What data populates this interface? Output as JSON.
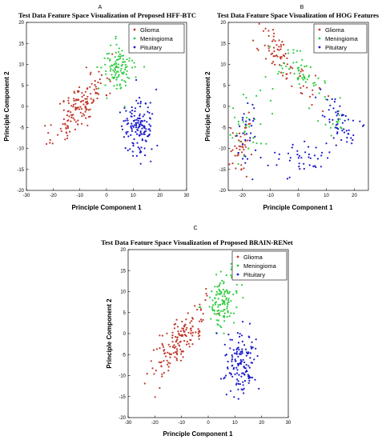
{
  "chart_data": [
    {
      "type": "scatter",
      "panel": "A",
      "title": "Test Data Feature Space Visualization of Proposed HFF-BTC",
      "xlabel": "Principle Component 1",
      "ylabel": "Principle Component 2",
      "xlim": [
        -30,
        30
      ],
      "ylim": [
        -20,
        20
      ],
      "xticks": [
        -30,
        -20,
        -10,
        0,
        10,
        20,
        30
      ],
      "yticks": [
        -20,
        -15,
        -10,
        -5,
        0,
        5,
        10,
        15,
        20
      ],
      "legend_position": "top-right",
      "series": [
        {
          "name": "Glioma",
          "color": "#c0392b",
          "marker": "dot",
          "clusters": [
            {
              "n": 150,
              "cx": -10,
              "cy": 0,
              "spread": [
                4.8,
                3.2
              ],
              "tilt": 0.55,
              "seed": 11
            }
          ]
        },
        {
          "name": "Meningioma",
          "color": "#2ecc40",
          "marker": "dot",
          "clusters": [
            {
              "n": 110,
              "cx": 5,
              "cy": 9,
              "spread": [
                3.2,
                3.0
              ],
              "tilt": 0.1,
              "seed": 12
            }
          ]
        },
        {
          "name": "Pituitary",
          "color": "#1a1acc",
          "marker": "dot",
          "clusters": [
            {
              "n": 140,
              "cx": 12,
              "cy": -5,
              "spread": [
                3.0,
                3.4
              ],
              "tilt": 0,
              "seed": 13
            }
          ]
        }
      ]
    },
    {
      "type": "scatter",
      "panel": "B",
      "title": "Test Data Feature Space Visualization of HOG Features",
      "xlabel": "Principle Component 1",
      "ylabel": "Principle Component 2",
      "xlim": [
        -25,
        25
      ],
      "ylim": [
        -20,
        20
      ],
      "xticks": [
        -20,
        -10,
        0,
        10,
        20
      ],
      "yticks": [
        -20,
        -15,
        -10,
        -5,
        0,
        5,
        10,
        15,
        20
      ],
      "legend_position": "top-right",
      "series": [
        {
          "name": "Glioma",
          "color": "#c0392b",
          "marker": "dot",
          "clusters": [
            {
              "n": 60,
              "cx": -7,
              "cy": 12,
              "spread": [
                3.0,
                2.6
              ],
              "tilt": -0.5,
              "seed": 21
            },
            {
              "n": 45,
              "cx": -21,
              "cy": -10,
              "spread": [
                2.2,
                3.0
              ],
              "tilt": 0.4,
              "seed": 22
            },
            {
              "n": 25,
              "cx": 4,
              "cy": 4,
              "spread": [
                3.0,
                2.0
              ],
              "tilt": -0.4,
              "seed": 23
            }
          ]
        },
        {
          "name": "Meningioma",
          "color": "#2ecc40",
          "marker": "dot",
          "clusters": [
            {
              "n": 55,
              "cx": 0,
              "cy": 8,
              "spread": [
                5.0,
                3.0
              ],
              "tilt": -0.55,
              "seed": 24
            },
            {
              "n": 35,
              "cx": -17,
              "cy": -5,
              "spread": [
                4.0,
                4.0
              ],
              "tilt": 0.2,
              "seed": 25
            },
            {
              "n": 15,
              "cx": 13,
              "cy": -3,
              "spread": [
                3.0,
                2.0
              ],
              "tilt": 0,
              "seed": 26
            }
          ]
        },
        {
          "name": "Pituitary",
          "color": "#1a1acc",
          "marker": "dot",
          "clusters": [
            {
              "n": 55,
              "cx": 14,
              "cy": -3,
              "spread": [
                3.5,
                3.0
              ],
              "tilt": -0.3,
              "seed": 27
            },
            {
              "n": 40,
              "cx": 2,
              "cy": -12,
              "spread": [
                5.5,
                2.2
              ],
              "tilt": 0.1,
              "seed": 28
            },
            {
              "n": 30,
              "cx": -19,
              "cy": -7,
              "spread": [
                2.5,
                4.0
              ],
              "tilt": 0,
              "seed": 29
            }
          ]
        }
      ]
    },
    {
      "type": "scatter",
      "panel": "C",
      "title": "Test Data Feature Space Visualization of Proposed BRAIN-RENet",
      "xlabel": "Principle Component 1",
      "ylabel": "Principle Component 2",
      "xlim": [
        -30,
        30
      ],
      "ylim": [
        -20,
        20
      ],
      "xticks": [
        -30,
        -20,
        -10,
        0,
        10,
        20,
        30
      ],
      "yticks": [
        -20,
        -15,
        -10,
        -5,
        0,
        5,
        10,
        15,
        20
      ],
      "legend_position": "top-right",
      "series": [
        {
          "name": "Glioma",
          "color": "#c0392b",
          "marker": "dot",
          "clusters": [
            {
              "n": 160,
              "cx": -11,
              "cy": -2,
              "spread": [
                5.5,
                3.0
              ],
              "tilt": 0.6,
              "seed": 31
            }
          ]
        },
        {
          "name": "Meningioma",
          "color": "#2ecc40",
          "marker": "dot",
          "clusters": [
            {
              "n": 120,
              "cx": 5,
              "cy": 8,
              "spread": [
                3.0,
                3.4
              ],
              "tilt": 0.2,
              "seed": 32
            }
          ]
        },
        {
          "name": "Pituitary",
          "color": "#1a1acc",
          "marker": "dot",
          "clusters": [
            {
              "n": 140,
              "cx": 12,
              "cy": -7,
              "spread": [
                3.0,
                3.6
              ],
              "tilt": 0,
              "seed": 33
            }
          ]
        }
      ]
    }
  ]
}
